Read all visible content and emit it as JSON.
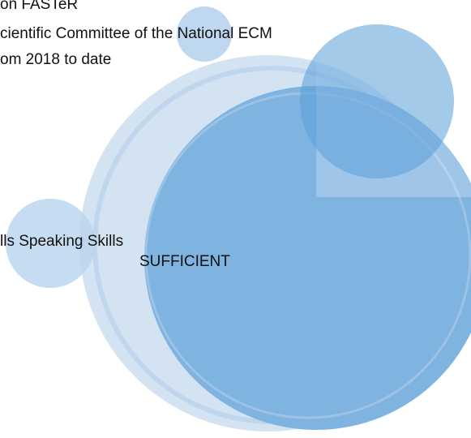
{
  "cv_lines": [
    "on FASTeR",
    "cientific Committee of the National ECM",
    "om 2018 to date"
  ],
  "skills": {
    "label": "lls Speaking Skills",
    "level": "SUFFICIENT"
  }
}
